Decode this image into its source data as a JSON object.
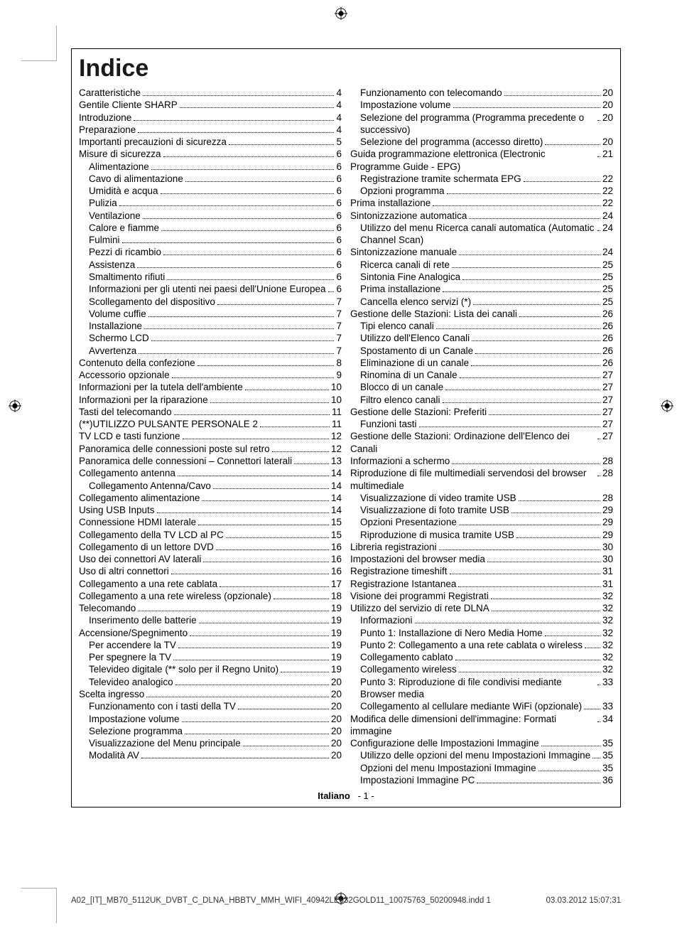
{
  "title": "Indice",
  "footer_lang": "Italiano",
  "footer_page": "- 1 -",
  "footer_file": "A02_[IT]_MB70_5112UK_DVBT_C_DLNA_HBBTV_MMH_WIFI_40942LE632GOLD11_10075763_50200948.indd   1",
  "footer_timestamp": "03.03.2012   15:07:31",
  "colors": {
    "text": "#000000",
    "bg": "#ffffff",
    "border": "#000000"
  },
  "font_sizes": {
    "title": 34,
    "body": 13.5,
    "footer": 13,
    "meta": 11.5
  },
  "col1": [
    {
      "t": "Caratteristiche",
      "p": "4",
      "i": 0
    },
    {
      "t": "Gentile Cliente SHARP",
      "p": "4",
      "i": 0
    },
    {
      "t": "Introduzione",
      "p": "4",
      "i": 0
    },
    {
      "t": "Preparazione",
      "p": "4",
      "i": 0
    },
    {
      "t": "Importanti precauzioni di sicurezza",
      "p": "5",
      "i": 0
    },
    {
      "t": "Misure di sicurezza",
      "p": "6",
      "i": 0
    },
    {
      "t": "Alimentazione",
      "p": "6",
      "i": 1
    },
    {
      "t": "Cavo di alimentazione",
      "p": "6",
      "i": 1
    },
    {
      "t": "Umidità e acqua",
      "p": "6",
      "i": 1
    },
    {
      "t": "Pulizia",
      "p": "6",
      "i": 1
    },
    {
      "t": "Ventilazione",
      "p": "6",
      "i": 1
    },
    {
      "t": "Calore e fiamme",
      "p": "6",
      "i": 1
    },
    {
      "t": "Fulmini",
      "p": "6",
      "i": 1
    },
    {
      "t": "Pezzi di ricambio",
      "p": "6",
      "i": 1
    },
    {
      "t": "Assistenza",
      "p": "6",
      "i": 1
    },
    {
      "t": "Smaltimento rifiuti",
      "p": "6",
      "i": 1
    },
    {
      "t": "Informazioni per gli utenti nei paesi dell'Unione Europea",
      "p": "6",
      "i": 1
    },
    {
      "t": "Scollegamento del dispositivo",
      "p": "7",
      "i": 1
    },
    {
      "t": "Volume cuffie",
      "p": "7",
      "i": 1
    },
    {
      "t": "Installazione",
      "p": "7",
      "i": 1
    },
    {
      "t": "Schermo LCD",
      "p": "7",
      "i": 1
    },
    {
      "t": "Avvertenza",
      "p": "7",
      "i": 1
    },
    {
      "t": "Contenuto della confezione",
      "p": "8",
      "i": 0
    },
    {
      "t": "Accessorio opzionale",
      "p": "9",
      "i": 0
    },
    {
      "t": "Informazioni per la tutela dell'ambiente",
      "p": "10",
      "i": 0
    },
    {
      "t": "Informazioni per la riparazione",
      "p": "10",
      "i": 0
    },
    {
      "t": "Tasti del telecomando",
      "p": "11",
      "i": 0
    },
    {
      "t": "(**)UTILIZZO PULSANTE  PERSONALE 2",
      "p": "11",
      "i": 0
    },
    {
      "t": "TV LCD e tasti funzione",
      "p": "12",
      "i": 0
    },
    {
      "t": "Panoramica delle connessioni poste sul retro",
      "p": "12",
      "i": 0
    },
    {
      "t": "Panoramica delle connessioni – Connettori laterali",
      "p": "13",
      "i": 0
    },
    {
      "t": "Collegamento antenna",
      "p": "14",
      "i": 0
    },
    {
      "t": "Collegamento Antenna/Cavo",
      "p": "14",
      "i": 1
    },
    {
      "t": "Collegamento alimentazione",
      "p": "14",
      "i": 0
    },
    {
      "t": "Using USB Inputs",
      "p": "14",
      "i": 0
    },
    {
      "t": "Connessione HDMI laterale",
      "p": "15",
      "i": 0
    },
    {
      "t": "Collegamento della TV LCD al PC",
      "p": "15",
      "i": 0
    },
    {
      "t": "Collegamento di un lettore DVD",
      "p": "16",
      "i": 0
    },
    {
      "t": "Uso dei connettori AV laterali",
      "p": "16",
      "i": 0
    },
    {
      "t": "Uso di altri connettori",
      "p": "16",
      "i": 0
    },
    {
      "t": "Collegamento a una rete cablata",
      "p": "17",
      "i": 0
    },
    {
      "t": "Collegamento a una rete wireless (opzionale)",
      "p": "18",
      "i": 0
    },
    {
      "t": "Telecomando",
      "p": "19",
      "i": 0
    },
    {
      "t": "Inserimento delle batterie",
      "p": "19",
      "i": 1
    },
    {
      "t": "Accensione/Spegnimento",
      "p": "19",
      "i": 0
    },
    {
      "t": "Per accendere la TV",
      "p": "19",
      "i": 1
    },
    {
      "t": "Per spegnere la TV",
      "p": "19",
      "i": 1
    },
    {
      "t": "Televideo digitale (** solo per il Regno Unito)",
      "p": "19",
      "i": 1
    },
    {
      "t": "Televideo analogico",
      "p": "20",
      "i": 1
    },
    {
      "t": "Scelta ingresso",
      "p": "20",
      "i": 0
    },
    {
      "t": "Funzionamento con i tasti della TV",
      "p": "20",
      "i": 1
    },
    {
      "t": "Impostazione volume",
      "p": "20",
      "i": 1
    },
    {
      "t": "Selezione programma",
      "p": "20",
      "i": 1
    },
    {
      "t": "Visualizzazione del Menu principale",
      "p": "20",
      "i": 1
    },
    {
      "t": "Modalità AV",
      "p": "20",
      "i": 1
    }
  ],
  "col2": [
    {
      "t": "Funzionamento con telecomando",
      "p": "20",
      "i": 1
    },
    {
      "t": "Impostazione volume",
      "p": "20",
      "i": 1
    },
    {
      "t": "Selezione del programma (Programma precedente o successivo)",
      "p": "20",
      "i": 1
    },
    {
      "t": "Selezione del programma (accesso diretto)",
      "p": "20",
      "i": 1
    },
    {
      "t": "Guida programmazione elettronica (Electronic Programme Guide - EPG)",
      "p": "21",
      "i": 0
    },
    {
      "t": "Registrazione tramite schermata EPG",
      "p": "22",
      "i": 1
    },
    {
      "t": "Opzioni programma",
      "p": "22",
      "i": 1
    },
    {
      "t": "Prima installazione",
      "p": "22",
      "i": 0
    },
    {
      "t": "Sintonizzazione automatica",
      "p": "24",
      "i": 0
    },
    {
      "t": "Utilizzo del menu Ricerca canali automatica (Automatic Channel Scan)",
      "p": "24",
      "i": 1
    },
    {
      "t": "Sintonizzazione manuale",
      "p": "24",
      "i": 0
    },
    {
      "t": "Ricerca canali di rete",
      "p": "25",
      "i": 1
    },
    {
      "t": "Sintonia Fine Analogica",
      "p": "25",
      "i": 1
    },
    {
      "t": "Prima installazione",
      "p": "25",
      "i": 1
    },
    {
      "t": "Cancella elenco servizi (*)",
      "p": "25",
      "i": 1
    },
    {
      "t": "Gestione delle Stazioni: Lista dei canali",
      "p": "26",
      "i": 0
    },
    {
      "t": "Tipi elenco canali",
      "p": "26",
      "i": 1
    },
    {
      "t": "Utilizzo dell'Elenco Canali",
      "p": "26",
      "i": 1
    },
    {
      "t": "Spostamento di un Canale",
      "p": "26",
      "i": 1
    },
    {
      "t": "Eliminazione di un canale",
      "p": "26",
      "i": 1
    },
    {
      "t": "Rinomina di un Canale",
      "p": "27",
      "i": 1
    },
    {
      "t": "Blocco di un canale",
      "p": "27",
      "i": 1
    },
    {
      "t": "Filtro elenco canali",
      "p": "27",
      "i": 1
    },
    {
      "t": "Gestione delle Stazioni: Preferiti",
      "p": "27",
      "i": 0
    },
    {
      "t": "Funzioni tasti",
      "p": "27",
      "i": 1
    },
    {
      "t": "Gestione delle Stazioni: Ordinazione dell'Elenco dei Canali",
      "p": "27",
      "i": 0
    },
    {
      "t": "Informazioni a schermo",
      "p": "28",
      "i": 0
    },
    {
      "t": "Riproduzione di file multimediali servendosi del browser multimediale",
      "p": "28",
      "i": 0
    },
    {
      "t": "Visualizzazione di video tramite USB",
      "p": "28",
      "i": 1
    },
    {
      "t": "Visualizzazione di foto tramite USB",
      "p": "29",
      "i": 1
    },
    {
      "t": "Opzioni Presentazione",
      "p": "29",
      "i": 1
    },
    {
      "t": "Riproduzione di musica tramite USB",
      "p": "29",
      "i": 1
    },
    {
      "t": "Libreria registrazioni",
      "p": "30",
      "i": 0
    },
    {
      "t": "Impostazioni del browser media",
      "p": "30",
      "i": 0
    },
    {
      "t": "Registrazione timeshift",
      "p": "31",
      "i": 0
    },
    {
      "t": "Registrazione Istantanea",
      "p": "31",
      "i": 0
    },
    {
      "t": "Visione dei programmi Registrati",
      "p": "32",
      "i": 0
    },
    {
      "t": "Utilizzo del servizio di rete DLNA",
      "p": "32",
      "i": 0
    },
    {
      "t": "Informazioni",
      "p": "32",
      "i": 1
    },
    {
      "t": "Punto 1: Installazione di Nero Media Home",
      "p": "32",
      "i": 1
    },
    {
      "t": "Punto 2: Collegamento a una rete cablata o wireless",
      "p": "32",
      "i": 1
    },
    {
      "t": "Collegamento cablato",
      "p": "32",
      "i": 1
    },
    {
      "t": "Collegamento wireless",
      "p": "32",
      "i": 1
    },
    {
      "t": "Punto 3: Riproduzione di file condivisi mediante Browser media",
      "p": "33",
      "i": 1
    },
    {
      "t": "Collegamento al cellulare mediante WiFi (opzionale)",
      "p": "33",
      "i": 1
    },
    {
      "t": "Modifica delle dimensioni dell'immagine: Formati immagine",
      "p": "34",
      "i": 0
    },
    {
      "t": "Configurazione delle Impostazioni Immagine",
      "p": "35",
      "i": 0
    },
    {
      "t": "Utilizzo delle opzioni del menu Impostazioni Immagine",
      "p": "35",
      "i": 1
    },
    {
      "t": "Opzioni del menu Impostazioni Immagine",
      "p": "35",
      "i": 1
    },
    {
      "t": "Impostazioni Immagine PC",
      "p": "36",
      "i": 1
    }
  ]
}
